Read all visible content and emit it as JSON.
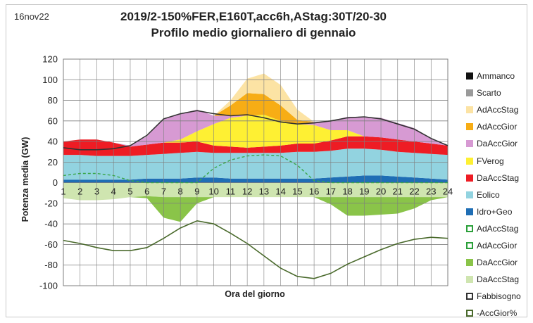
{
  "header": {
    "stamp": "16nov22",
    "title_line1": "2019/2-150%FER,E160T,acc6h,AStag:30T/20-30",
    "title_line2": "Profilo medio giornaliero di gennaio"
  },
  "chart_data": {
    "type": "area",
    "xlabel": "Ora del giorno",
    "ylabel": "Potenza media (GW)",
    "ylim": [
      -100,
      120
    ],
    "yticks": [
      -100,
      -80,
      -60,
      -40,
      -20,
      0,
      20,
      40,
      60,
      80,
      100,
      120
    ],
    "xticks": [
      "1",
      "2",
      "3",
      "4",
      "5",
      "6",
      "7",
      "8",
      "9",
      "10",
      "11",
      "12",
      "13",
      "14",
      "15",
      "16",
      "17",
      "18",
      "19",
      "20",
      "21",
      "22",
      "23",
      "24"
    ],
    "x": [
      1,
      2,
      3,
      4,
      5,
      6,
      7,
      8,
      9,
      10,
      11,
      12,
      13,
      14,
      15,
      16,
      17,
      18,
      19,
      20,
      21,
      22,
      23,
      24
    ],
    "grid": "horizontal and vertical",
    "legend_position": "right",
    "positive_stack": [
      {
        "name": "Idro+Geo",
        "color": "#1f6eb5",
        "values": [
          3,
          3,
          3,
          3,
          3,
          4,
          4,
          4,
          5,
          5,
          4,
          4,
          4,
          4,
          4,
          4,
          5,
          6,
          7,
          7,
          6,
          5,
          4,
          3
        ]
      },
      {
        "name": "Eolico",
        "color": "#92d3e0",
        "values": [
          24,
          24,
          23,
          23,
          23,
          23,
          24,
          25,
          25,
          24,
          25,
          25,
          25,
          25,
          26,
          26,
          26,
          27,
          26,
          25,
          24,
          24,
          24,
          24
        ]
      },
      {
        "name": "DaAccStag",
        "color": "#ee1c24",
        "values": [
          13,
          15,
          16,
          13,
          9,
          10,
          11,
          10,
          10,
          7,
          6,
          5,
          6,
          7,
          8,
          8,
          10,
          12,
          12,
          12,
          12,
          11,
          10,
          9
        ]
      },
      {
        "name": "FVerog",
        "color": "#fef033",
        "values": [
          0,
          0,
          0,
          0,
          0,
          0,
          0,
          3,
          10,
          21,
          28,
          31,
          31,
          24,
          19,
          18,
          10,
          6,
          0,
          0,
          0,
          0,
          0,
          0
        ]
      },
      {
        "name": "DaAccGior",
        "color": "#d79ad3",
        "values": [
          0,
          0,
          0,
          0,
          1,
          8,
          23,
          25,
          21,
          8,
          2,
          0,
          0,
          0,
          0,
          3,
          9,
          13,
          19,
          19,
          16,
          13,
          5,
          0
        ]
      },
      {
        "name": "AdAccGior",
        "color": "#f7ad15",
        "values": [
          0,
          0,
          0,
          0,
          0,
          0,
          0,
          0,
          0,
          0,
          10,
          22,
          20,
          15,
          4,
          0,
          0,
          0,
          0,
          0,
          0,
          0,
          0,
          0
        ]
      },
      {
        "name": "AdAccStag",
        "color": "#fce3a4",
        "values": [
          0,
          0,
          0,
          0,
          0,
          0,
          0,
          0,
          0,
          0,
          5,
          14,
          20,
          20,
          10,
          0,
          0,
          0,
          0,
          0,
          0,
          0,
          0,
          0
        ]
      }
    ],
    "negative_stack": [
      {
        "name": "DaAccStag",
        "color": "#cfe5b0",
        "values": [
          -15,
          -17,
          -17,
          -16,
          -14,
          -13,
          -14,
          -14,
          -14,
          -14,
          -14,
          -14,
          -14,
          -14,
          -14,
          -14,
          -14,
          -14,
          -14,
          -14,
          -14,
          -14,
          -14,
          -14
        ]
      },
      {
        "name": "DaAccGior",
        "color": "#8ac449",
        "values": [
          0,
          0,
          0,
          0,
          0,
          -2,
          -20,
          -24,
          -6,
          0,
          0,
          0,
          0,
          0,
          0,
          0,
          -7,
          -18,
          -18,
          -17,
          -16,
          -11,
          -3,
          0
        ]
      }
    ],
    "lines": [
      {
        "name": "Fabbisogno",
        "color": "#333333",
        "style": "solid",
        "values": [
          34,
          32,
          32,
          33,
          36,
          46,
          62,
          67,
          70,
          67,
          65,
          66,
          63,
          59,
          57,
          58,
          60,
          63,
          64,
          62,
          57,
          52,
          43,
          36
        ]
      },
      {
        "name": "AdAccGior",
        "color": "#3aa64a",
        "style": "dashed",
        "values": [
          7,
          9,
          9,
          7,
          2,
          0,
          0,
          0,
          0,
          14,
          22,
          26,
          27,
          26,
          17,
          2,
          0,
          0,
          0,
          0,
          0,
          0,
          0,
          0
        ]
      },
      {
        "name": "-AccGior%",
        "color": "#4a6a2c",
        "style": "solid",
        "values": [
          -56,
          -59,
          -63,
          -66,
          -66,
          -63,
          -54,
          -44,
          -37,
          -40,
          -49,
          -59,
          -71,
          -83,
          -91,
          -93,
          -88,
          -79,
          -72,
          -65,
          -59,
          -55,
          -53,
          -54
        ]
      }
    ],
    "legend": [
      {
        "label": "Ammanco",
        "style": "solid",
        "color": "#111111"
      },
      {
        "label": "Scarto",
        "style": "solid",
        "color": "#9a9a9a"
      },
      {
        "label": "AdAccStag",
        "style": "solid",
        "color": "#fce3a4"
      },
      {
        "label": "AdAccGior",
        "style": "solid",
        "color": "#f7ad15"
      },
      {
        "label": "DaAccGior",
        "style": "solid",
        "color": "#d79ad3"
      },
      {
        "label": "FVerog",
        "style": "solid",
        "color": "#fef033"
      },
      {
        "label": "DaAccStag",
        "style": "solid",
        "color": "#ee1c24"
      },
      {
        "label": "Eolico",
        "style": "solid",
        "color": "#92d3e0"
      },
      {
        "label": "Idro+Geo",
        "style": "solid",
        "color": "#1f6eb5"
      },
      {
        "label": "AdAccStag",
        "style": "outline",
        "color": "#2ba03a"
      },
      {
        "label": "AdAccGior",
        "style": "dashed-outline",
        "color": "#2ba03a"
      },
      {
        "label": "DaAccGior",
        "style": "solid",
        "color": "#8ac449"
      },
      {
        "label": "DaAccStag",
        "style": "solid",
        "color": "#cfe5b0"
      },
      {
        "label": "Fabbisogno",
        "style": "outline",
        "color": "#333333"
      },
      {
        "label": "-AccGior%",
        "style": "outline",
        "color": "#4a6a2c"
      }
    ]
  }
}
